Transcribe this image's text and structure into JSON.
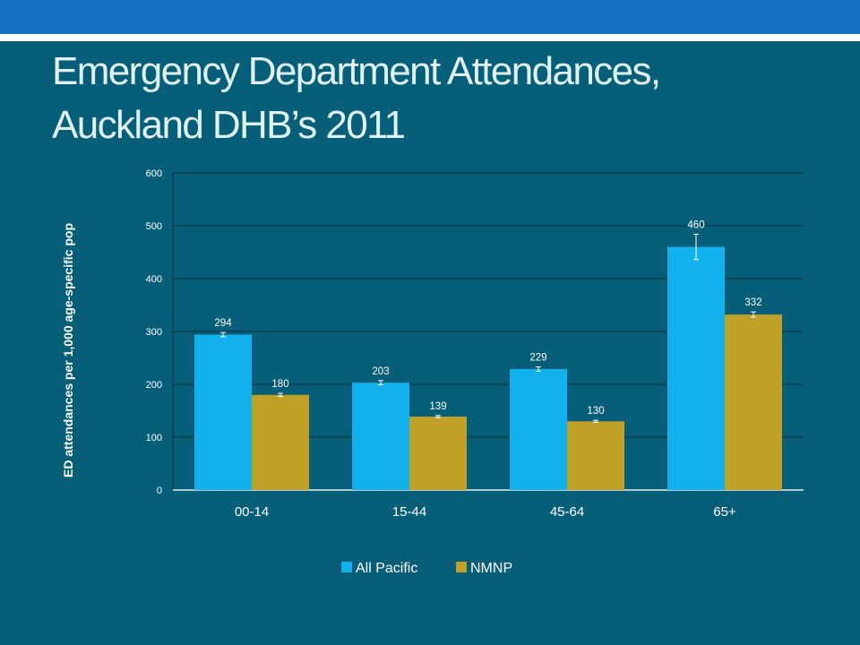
{
  "slide": {
    "title_line1": "Emergency Department Attendances,",
    "title_line2": "Auckland DHB’s 2011"
  },
  "colors": {
    "background": "#075e78",
    "top_band": "#1670c4",
    "title_text": "#dff3f7",
    "all_pacific": "#12b1ee",
    "nmnp": "#bfa128"
  },
  "chart_data": {
    "type": "bar",
    "title": "",
    "xlabel": "",
    "ylabel": "ED attendances per 1,000 age-specific pop",
    "ylim": [
      0,
      600
    ],
    "yticks": [
      0,
      100,
      200,
      300,
      400,
      500,
      600
    ],
    "grid": true,
    "legend_position": "bottom",
    "categories": [
      "00-14",
      "15-44",
      "45-64",
      "65+"
    ],
    "series": [
      {
        "name": "All Pacific",
        "color": "#12b1ee",
        "values": [
          294,
          203,
          229,
          460
        ],
        "error_low": [
          290,
          199,
          225,
          436
        ],
        "error_high": [
          298,
          207,
          233,
          484
        ]
      },
      {
        "name": "NMNP",
        "color": "#bfa128",
        "values": [
          180,
          139,
          130,
          332
        ],
        "error_low": [
          177,
          137,
          128,
          327
        ],
        "error_high": [
          183,
          141,
          132,
          337
        ]
      }
    ],
    "data_labels": [
      [
        "294",
        "203",
        "229",
        "460"
      ],
      [
        "180",
        "139",
        "130",
        "332"
      ]
    ]
  }
}
